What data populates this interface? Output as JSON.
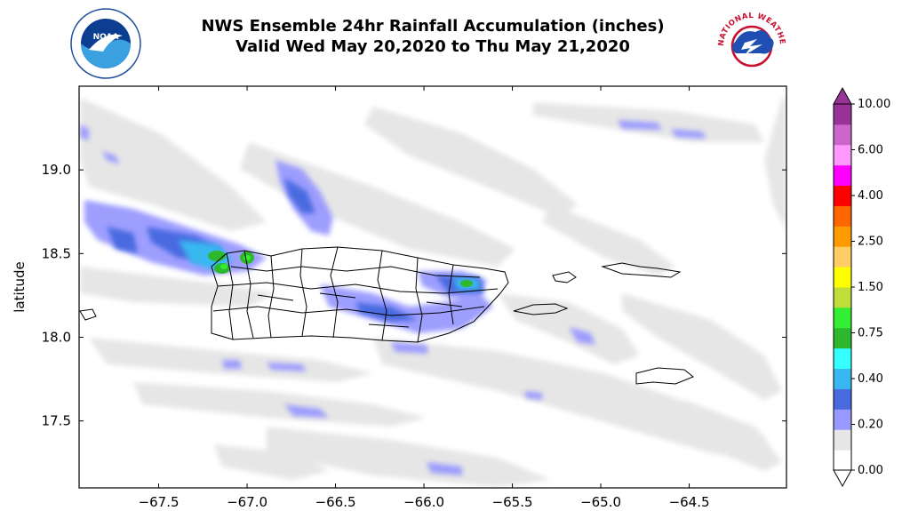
{
  "title": {
    "line1": "NWS Ensemble 24hr Rainfall Accumulation (inches)",
    "line2": "Valid Wed May 20,2020 to Thu May 21,2020"
  },
  "logos": {
    "left": {
      "text": "NOAA",
      "ring_color": "#1a4b9c"
    },
    "right": {
      "arc_text": "NATIONAL WEATHER SERVICE",
      "text_color": "#c8102e"
    }
  },
  "chart_data": {
    "type": "heatmap",
    "x_ticks": [
      "−67.5",
      "−67.0",
      "−66.5",
      "−66.0",
      "−65.5",
      "−65.0",
      "−64.5"
    ],
    "x_tick_values": [
      -67.5,
      -67.0,
      -66.5,
      -66.0,
      -65.5,
      -65.0,
      -64.5
    ],
    "y_ticks": [
      "17.5",
      "18.0",
      "18.5",
      "19.0"
    ],
    "y_tick_values": [
      17.5,
      18.0,
      18.5,
      19.0
    ],
    "ylabel": "latitude",
    "xlim": [
      -67.95,
      -63.95
    ],
    "ylim": [
      17.1,
      19.5
    ],
    "colorbar": {
      "labels": [
        "10.00",
        "6.00",
        "4.00",
        "2.50",
        "1.50",
        "0.75",
        "0.40",
        "0.20",
        "0.00"
      ],
      "colors": [
        "#ffffff",
        "#e6e6e6",
        "#9999ff",
        "#4a6be0",
        "#38b8f0",
        "#33ffff",
        "#2eb82e",
        "#33ee33",
        "#c0dd3a",
        "#ffff00",
        "#ffcc66",
        "#ff9a00",
        "#ff6600",
        "#ff0000",
        "#ff00ff",
        "#ff99ff",
        "#cc66cc",
        "#993399"
      ],
      "extend": "both"
    }
  }
}
